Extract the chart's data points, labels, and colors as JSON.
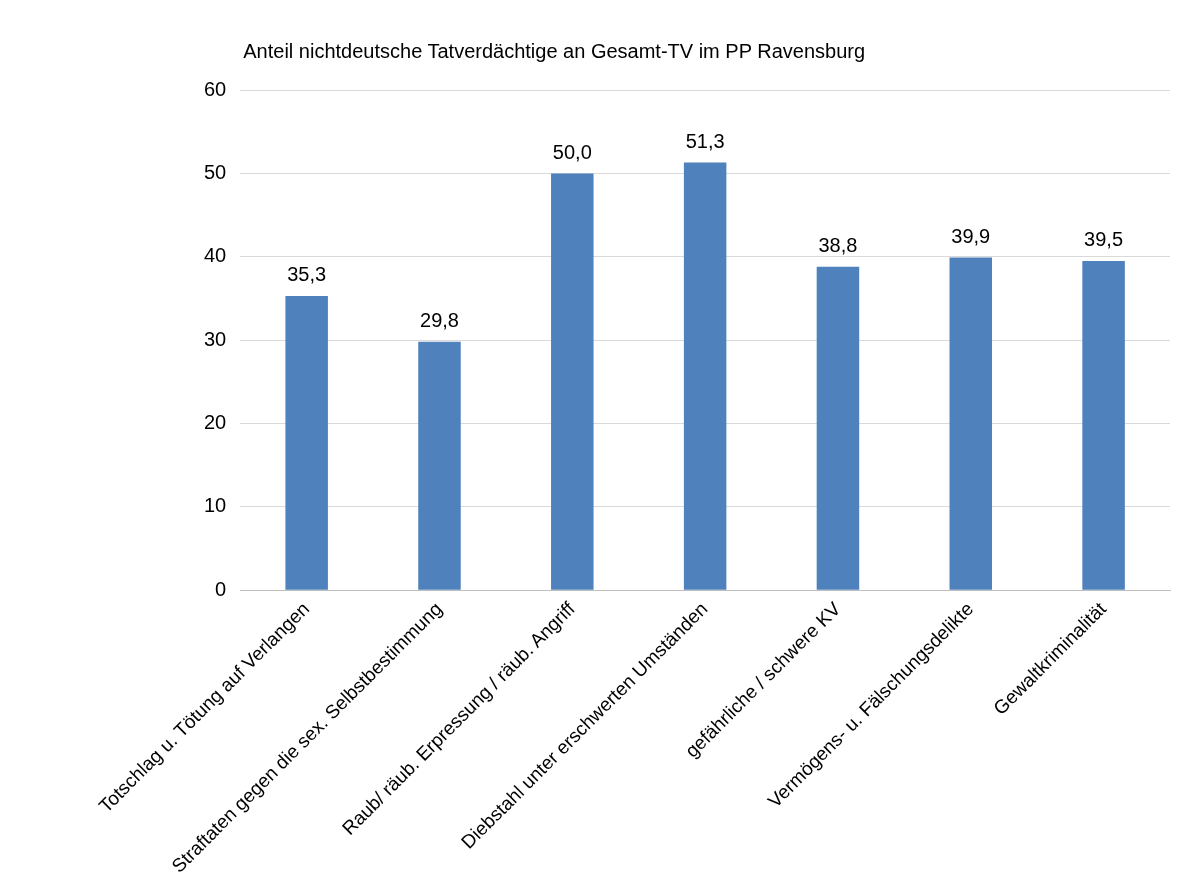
{
  "chart_data": {
    "type": "bar",
    "title": "Anteil nichtdeutsche Tatverdächtige an Gesamt-TV im PP Ravensburg",
    "categories": [
      "Totschlag u. Tötung auf Verlangen",
      "Straftaten gegen die sex. Selbstbestimmung",
      "Raub/ räub. Erpressung / räub. Angriff",
      "Diebstahl unter erschwerten Umständen",
      "gefährliche / schwere KV",
      "Vermögens- u. Fälschungsdelikte",
      "Gewaltkriminalität"
    ],
    "values": [
      35.3,
      29.8,
      50.0,
      51.3,
      38.8,
      39.9,
      39.5
    ],
    "value_labels": [
      "35,3",
      "29,8",
      "50,0",
      "51,3",
      "38,8",
      "39,9",
      "39,5"
    ],
    "color": "#4f81bd",
    "ylim": [
      0,
      60
    ],
    "yticks": [
      0,
      10,
      20,
      30,
      40,
      50,
      60
    ],
    "grid": "y",
    "legend": false
  }
}
